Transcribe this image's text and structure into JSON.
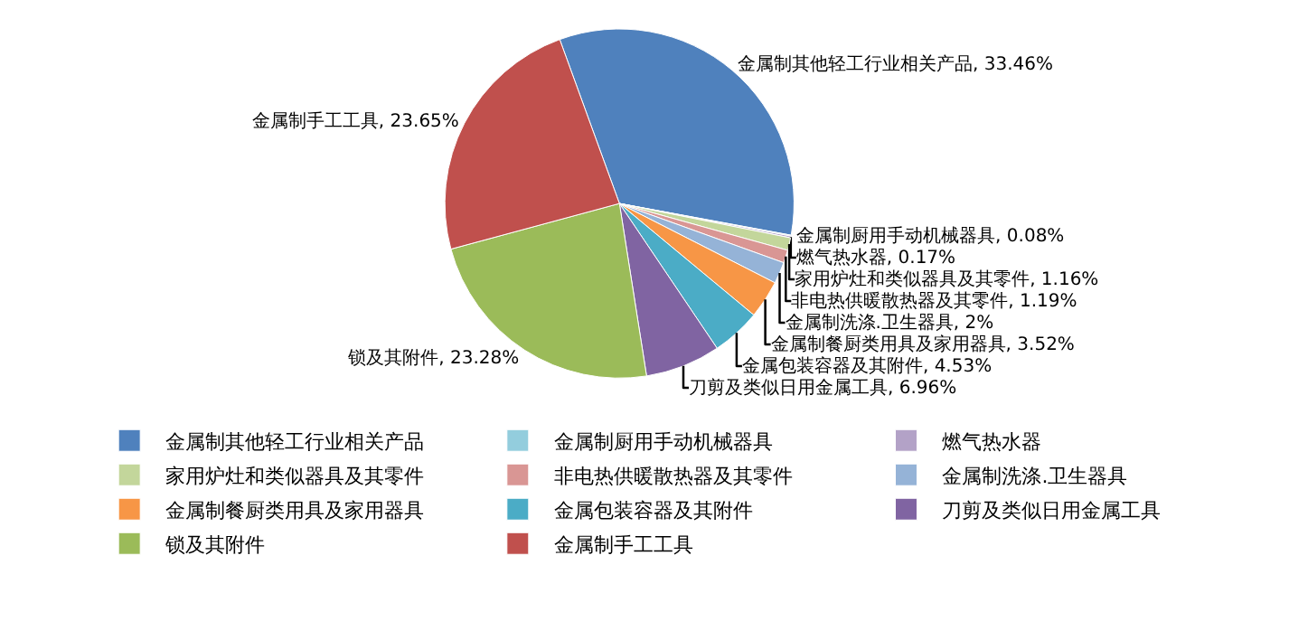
{
  "chart_data": {
    "type": "pie",
    "categories": [
      "金属制其他轻工行业相关产品",
      "金属制厨用手动机械器具",
      "燃气热水器",
      "家用炉灶和类似器具及其零件",
      "非电热供暖散热器及其零件",
      "金属制洗涤.卫生器具",
      "金属制餐厨类用具及家用器具",
      "金属包装容器及其附件",
      "刀剪及类似日用金属工具",
      "锁及其附件",
      "金属制手工工具"
    ],
    "values": [
      33.46,
      0.08,
      0.17,
      1.16,
      1.19,
      2,
      3.52,
      4.53,
      6.96,
      23.28,
      23.65
    ],
    "value_labels": [
      "金属制其他轻工行业相关产品, 33.46%",
      "金属制厨用手动机械器具, 0.08%",
      "燃气热水器, 0.17%",
      "家用炉灶和类似器具及其零件, 1.16%",
      "非电热供暖散热器及其零件, 1.19%",
      "金属制洗涤.卫生器具, 2%",
      "金属制餐厨类用具及家用器具, 3.52%",
      "金属包装容器及其附件, 4.53%",
      "刀剪及类似日用金属工具, 6.96%",
      "锁及其附件, 23.28%",
      "金属制手工工具, 23.65%"
    ],
    "colors": [
      "#4f81bd",
      "#93cddd",
      "#b3a2c7",
      "#c3d69b",
      "#d99694",
      "#95b3d7",
      "#f79646",
      "#4bacc6",
      "#8064a2",
      "#9bbb59",
      "#c0504d"
    ],
    "legend": "bottom"
  }
}
